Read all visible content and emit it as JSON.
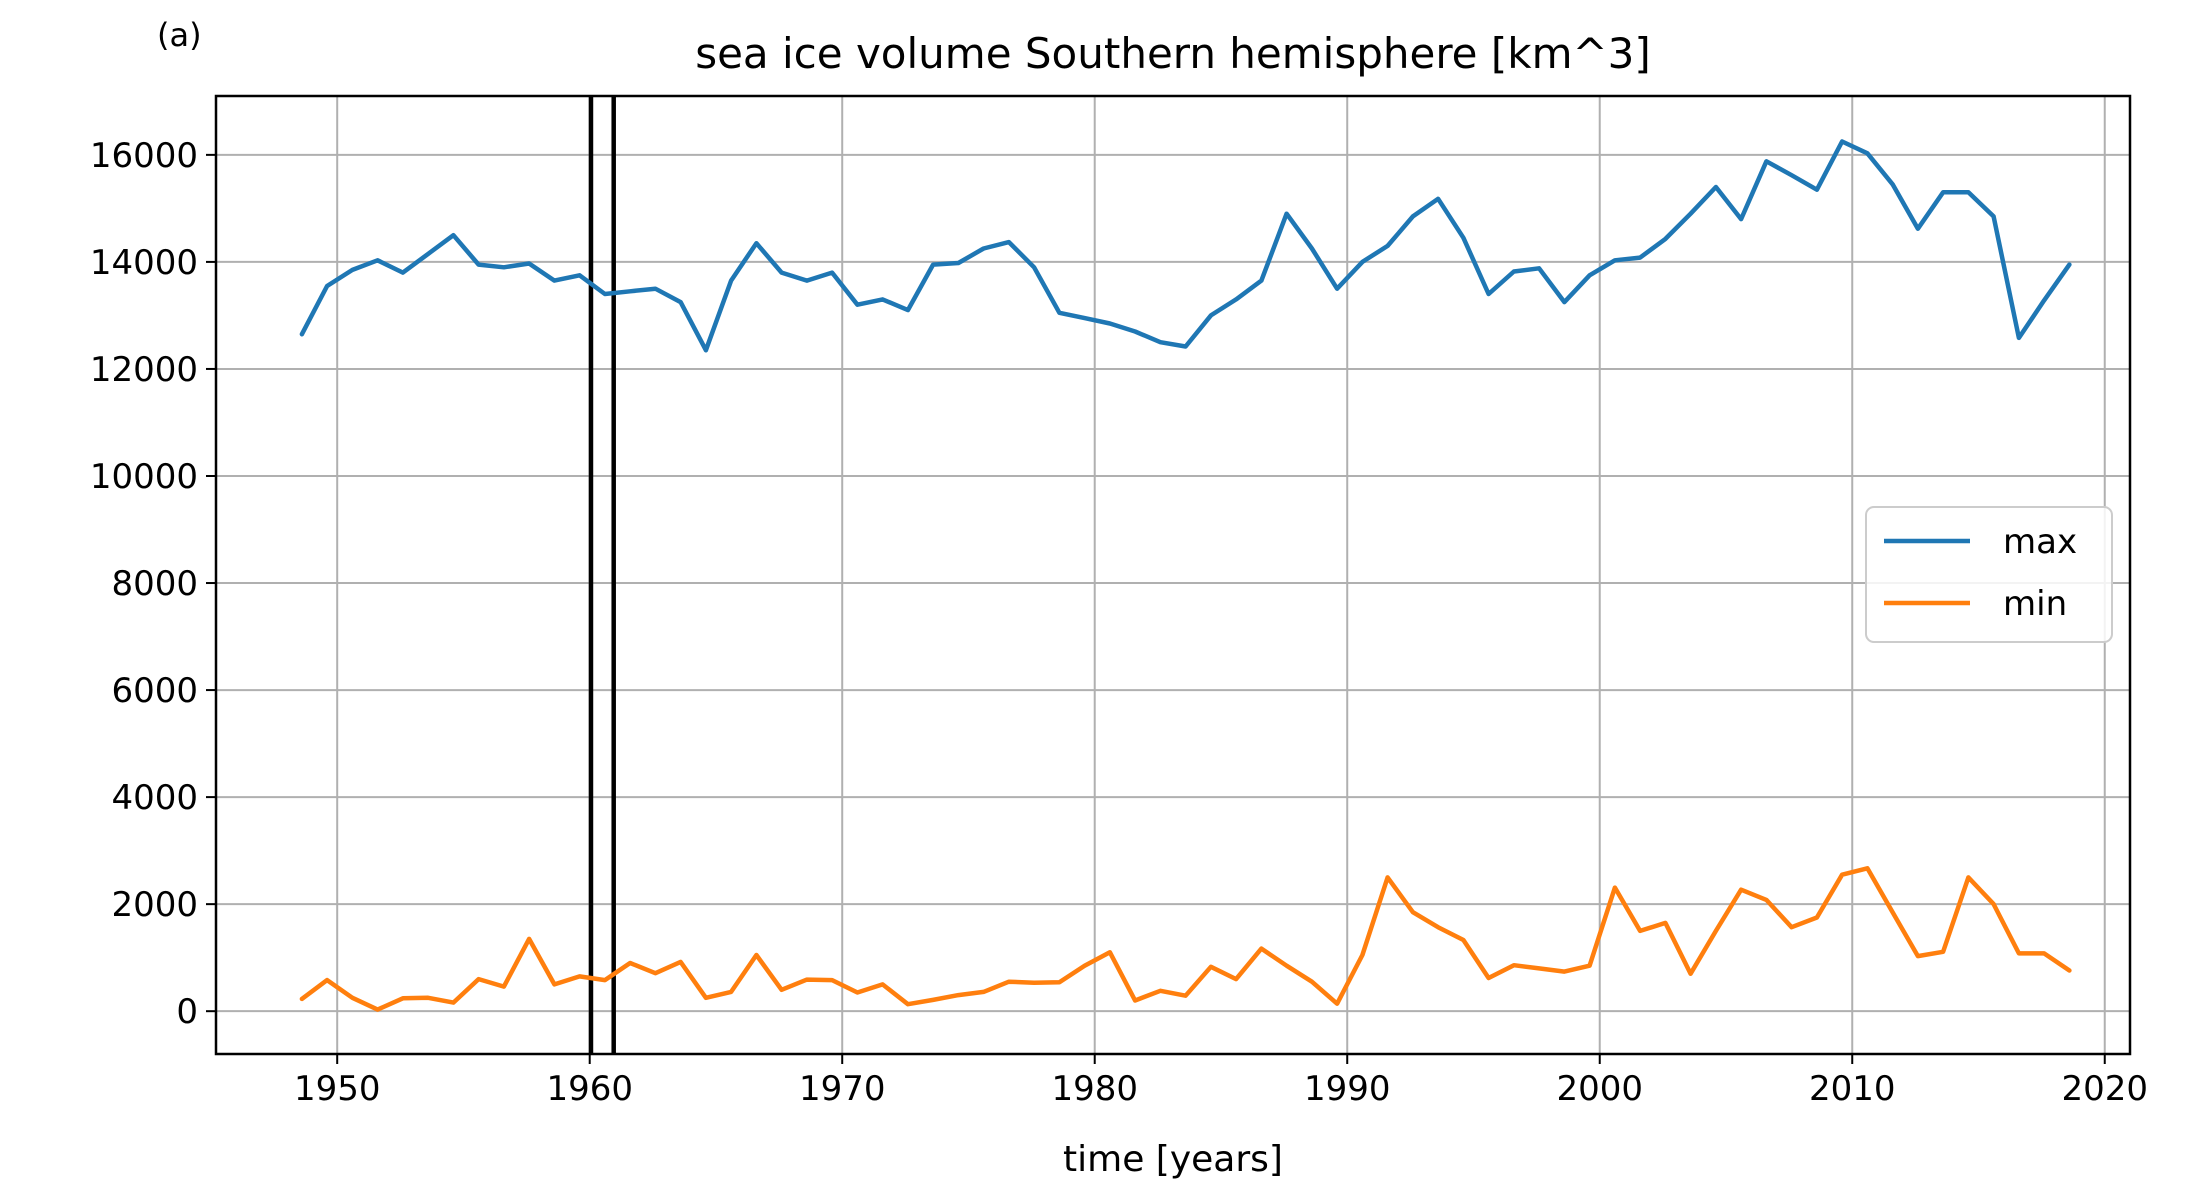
{
  "panel_label": "(a)",
  "chart_data": {
    "type": "line",
    "title": "sea ice volume Southern hemisphere [km^3]",
    "xlabel": "time [years]",
    "ylabel": "",
    "xlim": [
      1945.2,
      2021.0
    ],
    "ylim": [
      -800,
      17100
    ],
    "xticks": [
      1950,
      1960,
      1970,
      1980,
      1990,
      2000,
      2010,
      2020
    ],
    "yticks": [
      0,
      2000,
      4000,
      6000,
      8000,
      10000,
      12000,
      14000,
      16000
    ],
    "grid": true,
    "legend_position": "center-right",
    "vertical_lines": [
      1960.05,
      1960.95
    ],
    "x": [
      1948.6,
      1949.6,
      1950.6,
      1951.6,
      1952.6,
      1953.6,
      1954.6,
      1955.6,
      1956.6,
      1957.6,
      1958.6,
      1959.6,
      1960.6,
      1961.6,
      1962.6,
      1963.6,
      1964.6,
      1965.6,
      1966.6,
      1967.6,
      1968.6,
      1969.6,
      1970.6,
      1971.6,
      1972.6,
      1973.6,
      1974.6,
      1975.6,
      1976.6,
      1977.6,
      1978.6,
      1979.6,
      1980.6,
      1981.6,
      1982.6,
      1983.6,
      1984.6,
      1985.6,
      1986.6,
      1987.6,
      1988.6,
      1989.6,
      1990.6,
      1991.6,
      1992.6,
      1993.6,
      1994.6,
      1995.6,
      1996.6,
      1997.6,
      1998.6,
      1999.6,
      2000.6,
      2001.6,
      2002.6,
      2003.6,
      2004.6,
      2005.6,
      2006.6,
      2007.6,
      2008.6,
      2009.6,
      2010.6,
      2011.6,
      2012.6,
      2013.6,
      2014.6,
      2015.6,
      2016.6,
      2017.6,
      2018.6
    ],
    "series": [
      {
        "name": "max",
        "color": "#1f77b4",
        "values": [
          12650,
          13550,
          13850,
          14030,
          13800,
          14150,
          14500,
          13950,
          13900,
          13970,
          13650,
          13750,
          13400,
          13450,
          13500,
          13250,
          12350,
          13650,
          14350,
          13800,
          13650,
          13800,
          13200,
          13300,
          13100,
          13950,
          13980,
          14250,
          14370,
          13900,
          13050,
          12950,
          12850,
          12700,
          12500,
          12420,
          13000,
          13300,
          13650,
          14900,
          14250,
          13500,
          14000,
          14300,
          14850,
          15180,
          14450,
          13400,
          13820,
          13880,
          13250,
          13750,
          14030,
          14080,
          14430,
          14900,
          15400,
          14800,
          15880,
          15620,
          15350,
          16250,
          16030,
          15450,
          14620,
          15300,
          15300,
          14850,
          12580,
          13280,
          13950
        ]
      },
      {
        "name": "min",
        "color": "#ff7f0e",
        "values": [
          230,
          580,
          250,
          30,
          240,
          250,
          160,
          600,
          460,
          1350,
          500,
          650,
          580,
          900,
          710,
          920,
          250,
          360,
          1050,
          400,
          590,
          580,
          350,
          500,
          130,
          210,
          300,
          360,
          550,
          530,
          540,
          850,
          1100,
          200,
          380,
          290,
          830,
          600,
          1170,
          850,
          550,
          140,
          1050,
          2500,
          1850,
          1570,
          1330,
          620,
          860,
          800,
          740,
          850,
          2310,
          1500,
          1650,
          700,
          1500,
          2270,
          2080,
          1570,
          1750,
          2550,
          2670,
          1850,
          1030,
          1110,
          2500,
          2000,
          1080,
          1080,
          760
        ]
      }
    ]
  }
}
